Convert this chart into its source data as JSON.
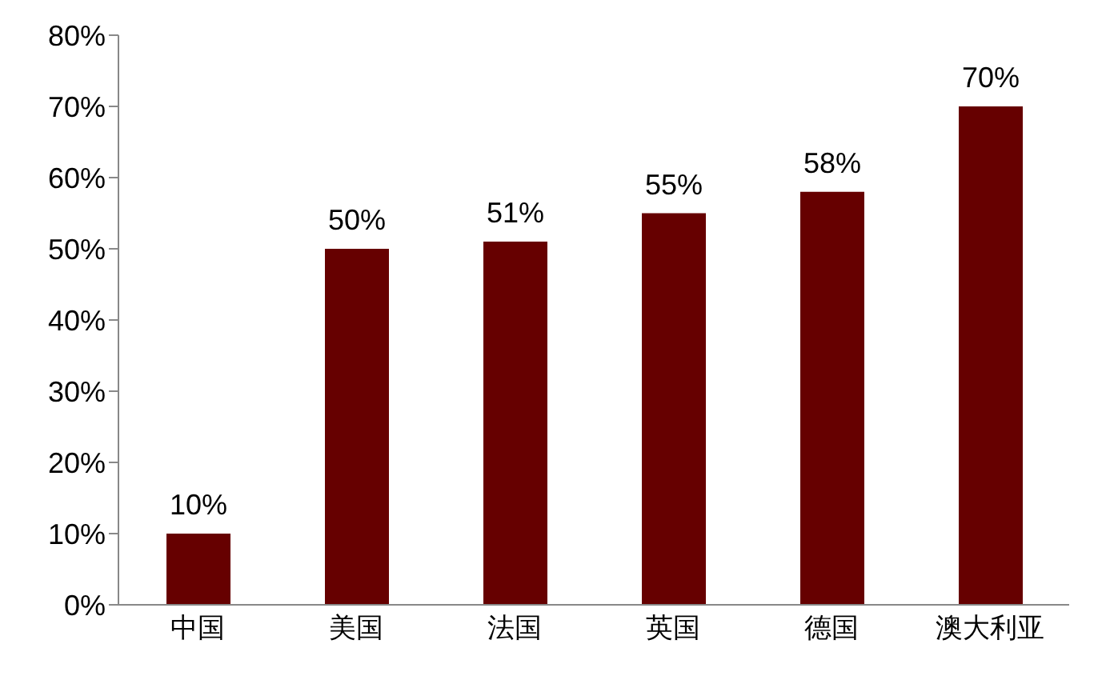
{
  "chart_data": {
    "type": "bar",
    "categories": [
      "中国",
      "美国",
      "法国",
      "英国",
      "德国",
      "澳大利亚"
    ],
    "values": [
      10,
      50,
      51,
      55,
      58,
      70
    ],
    "value_labels": [
      "10%",
      "50%",
      "51%",
      "55%",
      "58%",
      "70%"
    ],
    "color": "#660000",
    "ylim": [
      0,
      80
    ],
    "yticks": [
      {
        "value": 0,
        "label": "0%"
      },
      {
        "value": 10,
        "label": "10%"
      },
      {
        "value": 20,
        "label": "20%"
      },
      {
        "value": 30,
        "label": "30%"
      },
      {
        "value": 40,
        "label": "40%"
      },
      {
        "value": 50,
        "label": "50%"
      },
      {
        "value": 60,
        "label": "60%"
      },
      {
        "value": 70,
        "label": "70%"
      },
      {
        "value": 80,
        "label": "80%"
      }
    ],
    "grid": false,
    "legend": false
  }
}
